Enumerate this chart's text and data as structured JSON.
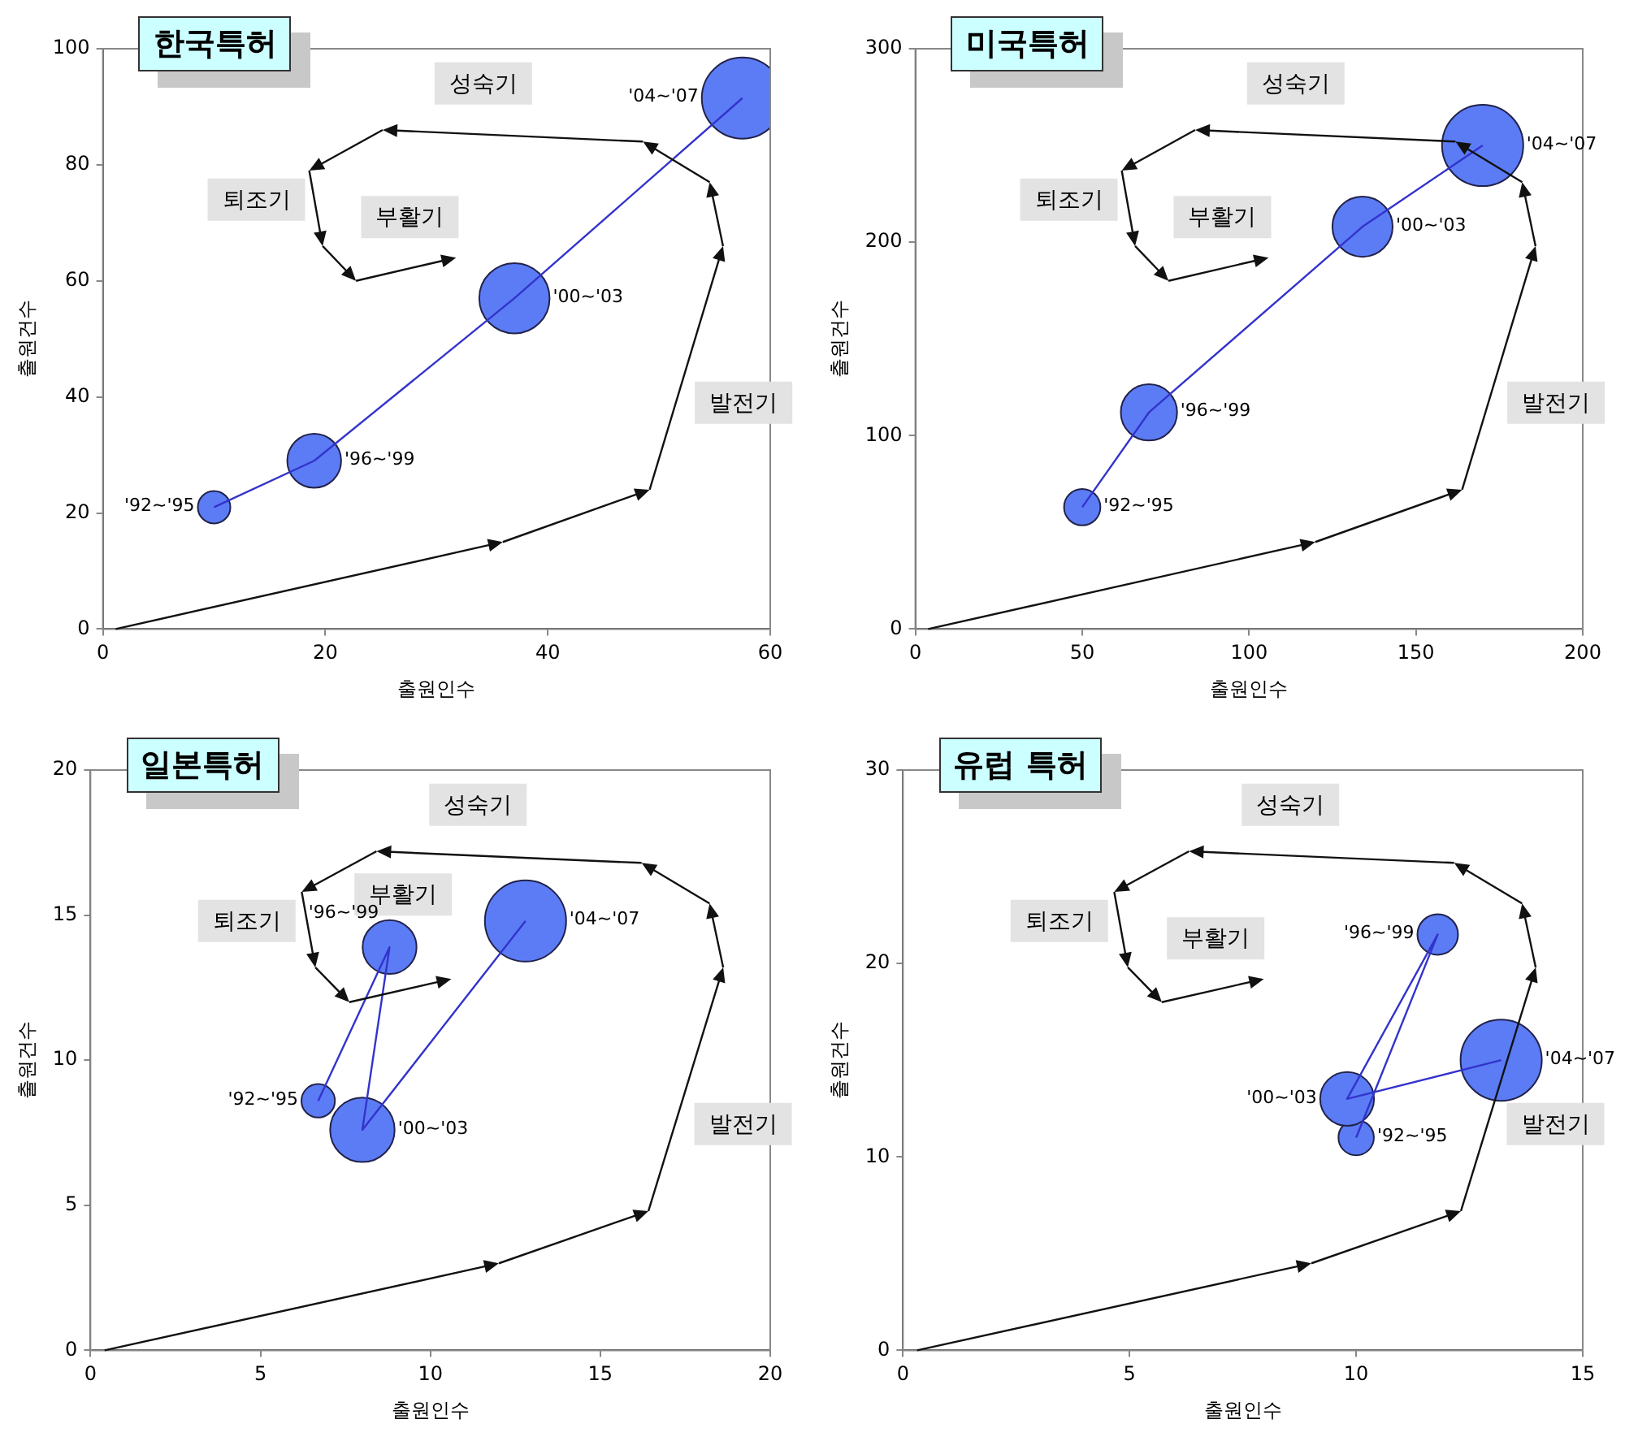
{
  "chart_data": [
    {
      "type": "bubble",
      "title": "한국특허",
      "xlabel": "출원인수",
      "ylabel": "출원건수",
      "x": [
        10,
        19,
        37,
        57.5
      ],
      "series": [
        {
          "type": "line",
          "color": "#3333cc",
          "values": [
            21,
            29,
            57,
            91.5
          ]
        },
        {
          "type": "bubble",
          "color": "#5b7cf5",
          "values": [
            21,
            29,
            57,
            91.5
          ],
          "sizes": [
            0.16,
            0.44,
            0.75,
            1
          ]
        }
      ],
      "xlim": [
        0,
        60
      ],
      "xticks": [
        0,
        20,
        40,
        60
      ],
      "ylim": [
        0,
        100
      ],
      "yticks": [
        0,
        20,
        40,
        60,
        80,
        100
      ],
      "grid": false,
      "legend": false,
      "annotations": [
        {
          "text": "'92~'95",
          "x": 10,
          "y": 21
        },
        {
          "text": "'96~'99",
          "x": 19,
          "y": 29
        },
        {
          "text": "'00~'03",
          "x": 37,
          "y": 57
        },
        {
          "text": "'04~'07",
          "x": 57.5,
          "y": 91.5
        },
        "성숙기",
        "퇴조기",
        "부활기",
        "발전기"
      ]
    },
    {
      "type": "bubble",
      "title": "미국특허",
      "xlabel": "출원인수",
      "ylabel": "출원건수",
      "x": [
        50,
        70,
        134,
        170
      ],
      "series": [
        {
          "type": "line",
          "color": "#3333cc",
          "values": [
            63,
            112,
            208,
            250
          ]
        },
        {
          "type": "bubble",
          "color": "#5b7cf5",
          "values": [
            63,
            112,
            208,
            250
          ],
          "sizes": [
            0.2,
            0.48,
            0.55,
            1
          ]
        }
      ],
      "xlim": [
        0,
        200
      ],
      "xticks": [
        0,
        50,
        100,
        150,
        200
      ],
      "ylim": [
        0,
        300
      ],
      "yticks": [
        0,
        100,
        200,
        300
      ],
      "grid": false,
      "legend": false,
      "annotations": [
        {
          "text": "'92~'95",
          "x": 50,
          "y": 63
        },
        {
          "text": "'96~'99",
          "x": 70,
          "y": 112
        },
        {
          "text": "'00~'03",
          "x": 134,
          "y": 208
        },
        {
          "text": "'04~'07",
          "x": 170,
          "y": 250
        },
        "성숙기",
        "퇴조기",
        "부활기",
        "발전기"
      ]
    },
    {
      "type": "bubble",
      "title": "일본특허",
      "xlabel": "출원인수",
      "ylabel": "출원건수",
      "x": [
        6.7,
        8.8,
        8,
        12.8
      ],
      "series": [
        {
          "type": "line",
          "color": "#3333cc",
          "values": [
            8.6,
            13.9,
            7.6,
            14.8
          ]
        },
        {
          "type": "bubble",
          "color": "#5b7cf5",
          "values": [
            8.6,
            13.9,
            7.6,
            14.8
          ],
          "sizes": [
            0.17,
            0.44,
            0.63,
            1
          ]
        }
      ],
      "xlim": [
        0,
        20
      ],
      "xticks": [
        0,
        5,
        10,
        15,
        20
      ],
      "ylim": [
        0,
        20
      ],
      "yticks": [
        0,
        5,
        10,
        15,
        20
      ],
      "grid": false,
      "legend": false,
      "annotations": [
        {
          "text": "'92~'95",
          "x": 6.7,
          "y": 8.6
        },
        {
          "text": "'96~'99",
          "x": 8.8,
          "y": 13.9
        },
        {
          "text": "'00~'03",
          "x": 8,
          "y": 7.6
        },
        {
          "text": "'04~'07",
          "x": 12.8,
          "y": 14.8
        },
        "성숙기",
        "퇴조기",
        "부활기",
        "발전기"
      ]
    },
    {
      "type": "bubble",
      "title": "유럽 특허",
      "xlabel": "출원인수",
      "ylabel": "출원건수",
      "x": [
        10,
        11.8,
        9.8,
        13.2
      ],
      "series": [
        {
          "type": "line",
          "color": "#3333cc",
          "values": [
            11,
            21.5,
            13,
            15
          ]
        },
        {
          "type": "bubble",
          "color": "#5b7cf5",
          "values": [
            11,
            21.5,
            13,
            15
          ],
          "sizes": [
            0.19,
            0.25,
            0.44,
            1
          ]
        }
      ],
      "xlim": [
        0,
        15
      ],
      "xticks": [
        0,
        5,
        10,
        15
      ],
      "ylim": [
        0,
        30
      ],
      "yticks": [
        0,
        10,
        20,
        30
      ],
      "grid": false,
      "legend": false,
      "annotations": [
        {
          "text": "'92~'95",
          "x": 10,
          "y": 11
        },
        {
          "text": "'96~'99",
          "x": 11.8,
          "y": 21.5
        },
        {
          "text": "'00~'03",
          "x": 9.8,
          "y": 13
        },
        {
          "text": "'04~'07",
          "x": 13.2,
          "y": 15
        },
        "성숙기",
        "퇴조기",
        "부활기",
        "발전기"
      ]
    }
  ]
}
